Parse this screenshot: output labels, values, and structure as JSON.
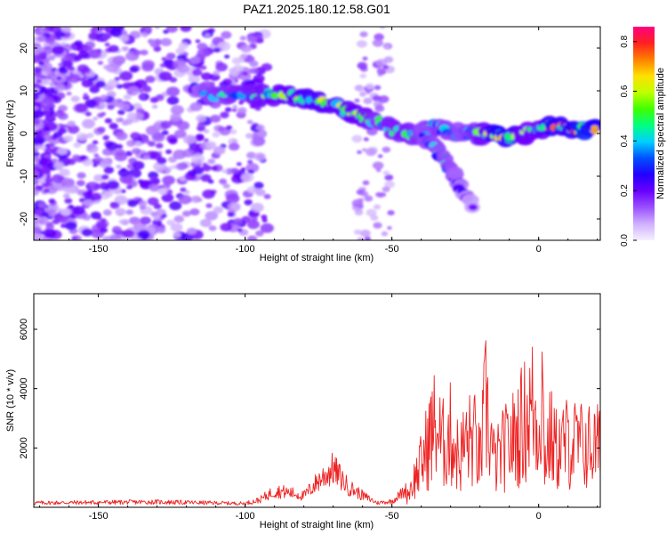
{
  "title": "PAZ1.2025.180.12.58.G01",
  "chart_data": [
    {
      "type": "heatmap",
      "xlabel": "Height of straight line (km)",
      "ylabel": "Frequency (Hz)",
      "xlim": [
        -172,
        21
      ],
      "ylim": [
        -25,
        25
      ],
      "xticks": [
        -150,
        -100,
        -50,
        0
      ],
      "yticks": [
        -20,
        -10,
        0,
        10,
        20
      ],
      "xtick_labels": [
        "-150",
        "-100",
        "-50",
        "0"
      ],
      "ytick_labels": [
        "-20",
        "-10",
        "0",
        "10",
        "20"
      ],
      "colorbar": {
        "label": "Normalized spectral amplitude",
        "range": [
          0,
          0.86
        ],
        "ticks": [
          0.0,
          0.2,
          0.4,
          0.6,
          0.8
        ],
        "tick_labels": [
          "0.0",
          "0.2",
          "0.4",
          "0.6",
          "0.8"
        ],
        "colors": [
          "#f5f0ff",
          "#cfb0ff",
          "#9a50ff",
          "#6a00ff",
          "#2200ff",
          "#0050ff",
          "#00d0ff",
          "#00ff80",
          "#40ff00",
          "#c0ff00",
          "#ffe000",
          "#ff8000",
          "#ff2020",
          "#ff0080"
        ]
      },
      "signal_track": [
        {
          "x": -118,
          "y": 11,
          "a": 0.3
        },
        {
          "x": -110,
          "y": 9,
          "a": 0.45
        },
        {
          "x": -100,
          "y": 9,
          "a": 0.5
        },
        {
          "x": -92,
          "y": 9,
          "a": 0.55
        },
        {
          "x": -85,
          "y": 9,
          "a": 0.6
        },
        {
          "x": -78,
          "y": 8,
          "a": 0.65
        },
        {
          "x": -70,
          "y": 7,
          "a": 0.6
        },
        {
          "x": -65,
          "y": 5,
          "a": 0.6
        },
        {
          "x": -60,
          "y": 4,
          "a": 0.55
        },
        {
          "x": -55,
          "y": 3,
          "a": 0.45
        },
        {
          "x": -50,
          "y": 1,
          "a": 0.5
        },
        {
          "x": -45,
          "y": 0,
          "a": 0.5
        },
        {
          "x": -40,
          "y": 0,
          "a": 0.45
        },
        {
          "x": -35,
          "y": 2,
          "a": 0.45
        },
        {
          "x": -30,
          "y": 0,
          "a": 0.4
        },
        {
          "x": -25,
          "y": 0,
          "a": 0.4
        },
        {
          "x": -20,
          "y": 0,
          "a": 0.5
        },
        {
          "x": -15,
          "y": 0,
          "a": 0.75
        },
        {
          "x": -10,
          "y": -1,
          "a": 0.7
        },
        {
          "x": -5,
          "y": 0,
          "a": 0.55
        },
        {
          "x": 0,
          "y": 1,
          "a": 0.55
        },
        {
          "x": 5,
          "y": 2,
          "a": 0.75
        },
        {
          "x": 10,
          "y": 1,
          "a": 0.65
        },
        {
          "x": 15,
          "y": 1,
          "a": 0.85
        },
        {
          "x": 20,
          "y": 1,
          "a": 0.75
        }
      ],
      "branch_track": [
        {
          "x": -40,
          "y": 0,
          "a": 0.4
        },
        {
          "x": -35,
          "y": -3,
          "a": 0.4
        },
        {
          "x": -30,
          "y": -9,
          "a": 0.4
        },
        {
          "x": -27,
          "y": -12,
          "a": 0.3
        },
        {
          "x": -22,
          "y": -18,
          "a": 0.2
        }
      ]
    },
    {
      "type": "line",
      "xlabel": "Height of straight line (km)",
      "ylabel": "SNR (10 * v/v)",
      "xlim": [
        -172,
        21
      ],
      "ylim": [
        0,
        7200
      ],
      "xticks": [
        -150,
        -100,
        -50,
        0
      ],
      "yticks": [
        2000,
        4000,
        6000
      ],
      "xtick_labels": [
        "-150",
        "-100",
        "-50",
        "0"
      ],
      "ytick_labels": [
        "2000",
        "4000",
        "6000"
      ],
      "line_color": "#ee2222",
      "envelope": {
        "x": [
          -172,
          -130,
          -100,
          -95,
          -90,
          -85,
          -80,
          -75,
          -70,
          -65,
          -60,
          -55,
          -50,
          -45,
          -40,
          -37,
          -35,
          -33,
          -30,
          -27,
          -25,
          -22,
          -20,
          -18,
          -15,
          -12,
          -10,
          -8,
          -5,
          -2,
          0,
          1,
          2,
          4,
          6,
          10,
          15,
          21
        ],
        "y": [
          150,
          180,
          130,
          250,
          550,
          500,
          380,
          900,
          1300,
          700,
          400,
          150,
          200,
          600,
          2300,
          3800,
          4500,
          3300,
          3900,
          2600,
          3500,
          3700,
          2500,
          5500,
          2300,
          3100,
          3400,
          3800,
          4600,
          5400,
          4100,
          7100,
          2800,
          3800,
          3100,
          3500,
          3300,
          3200
        ]
      }
    }
  ]
}
